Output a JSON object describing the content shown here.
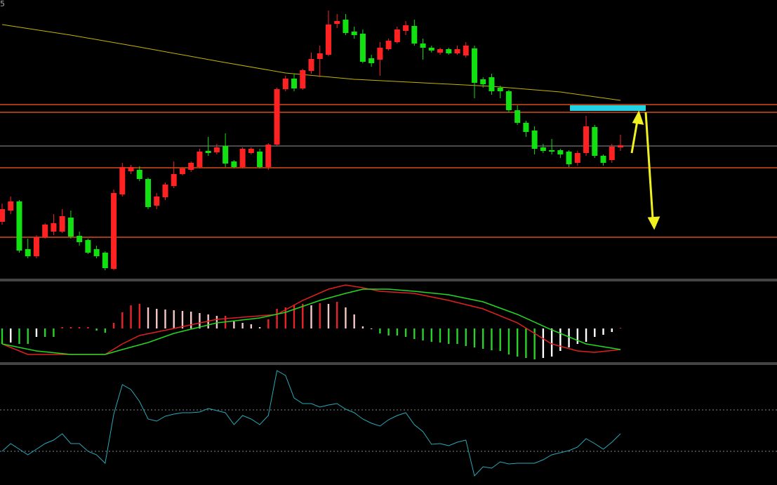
{
  "corner_label": "5",
  "chart_data": [
    {
      "type": "candlestick",
      "ylim": [
        0,
        400
      ],
      "up_color": "#ff2222",
      "down_color": "#11e011",
      "open": [
        84,
        100,
        113,
        45,
        35,
        62,
        70,
        70,
        90,
        64,
        58,
        45,
        40,
        17,
        123,
        156,
        158,
        145,
        107,
        119,
        135,
        152,
        158,
        162,
        185,
        183,
        192,
        170,
        162,
        182,
        184,
        162,
        194,
        273,
        288,
        274,
        299,
        316,
        322,
        366,
        372,
        355,
        352,
        317,
        315,
        330,
        340,
        356,
        363,
        338,
        332,
        325,
        330,
        324,
        321,
        331,
        287,
        290,
        275,
        270,
        243,
        225,
        214,
        190,
        186,
        186,
        184,
        168,
        182,
        219,
        178,
        172,
        190
      ],
      "high": [
        110,
        120,
        115,
        60,
        65,
        82,
        95,
        102,
        100,
        70,
        60,
        50,
        42,
        130,
        168,
        165,
        163,
        147,
        125,
        140,
        170,
        162,
        170,
        188,
        205,
        195,
        210,
        172,
        190,
        190,
        188,
        196,
        275,
        292,
        295,
        302,
        325,
        335,
        385,
        380,
        380,
        362,
        358,
        322,
        340,
        345,
        362,
        370,
        372,
        345,
        335,
        332,
        332,
        335,
        340,
        335,
        290,
        295,
        278,
        272,
        250,
        228,
        220,
        195,
        202,
        188,
        186,
        185,
        235,
        222,
        180,
        195,
        208
      ],
      "low": [
        80,
        95,
        40,
        32,
        32,
        60,
        65,
        68,
        60,
        50,
        38,
        32,
        15,
        15,
        120,
        152,
        142,
        102,
        102,
        115,
        132,
        150,
        155,
        160,
        178,
        180,
        162,
        160,
        160,
        180,
        160,
        158,
        192,
        270,
        270,
        272,
        295,
        290,
        320,
        360,
        350,
        345,
        310,
        305,
        292,
        328,
        338,
        350,
        335,
        315,
        325,
        322,
        322,
        322,
        318,
        260,
        275,
        265,
        260,
        240,
        222,
        205,
        180,
        182,
        180,
        175,
        162,
        164,
        178,
        175,
        164,
        168,
        185
      ],
      "close": [
        102,
        113,
        43,
        35,
        62,
        80,
        82,
        92,
        63,
        55,
        40,
        35,
        18,
        125,
        162,
        162,
        145,
        105,
        120,
        137,
        152,
        160,
        168,
        184,
        182,
        190,
        167,
        162,
        188,
        188,
        162,
        194,
        273,
        288,
        274,
        300,
        316,
        324,
        365,
        370,
        353,
        350,
        312,
        310,
        332,
        342,
        358,
        364,
        338,
        332,
        328,
        330,
        324,
        330,
        335,
        282,
        280,
        270,
        270,
        243,
        225,
        212,
        188,
        185,
        184,
        180,
        166,
        182,
        220,
        178,
        168,
        191,
        193
      ],
      "ma": {
        "color": "#c8b400",
        "x": [
          0,
          8,
          16,
          25,
          33,
          41,
          49,
          57,
          65,
          72
        ],
        "values": [
          365,
          350,
          333,
          313,
          296,
          287,
          282,
          277,
          269,
          257
        ]
      },
      "levels": [
        {
          "value": 251,
          "color": "#ff5a1e"
        },
        {
          "value": 240,
          "color": "#ff5a1e"
        },
        {
          "value": 192,
          "color": "#777777"
        },
        {
          "value": 161,
          "color": "#ff5a1e"
        },
        {
          "value": 62,
          "color": "#ff5a1e"
        }
      ]
    },
    {
      "type": "macd",
      "ylim": [
        -49,
        68
      ],
      "colors": {
        "rise_pos": "#e8232a",
        "fall_pos": "#f6c8c8",
        "fall_neg": "#2bd12b",
        "rise_neg": "#ffffff"
      },
      "values": [
        -22,
        -20,
        -22,
        -22,
        -12,
        -12,
        -12,
        2,
        2,
        2,
        2,
        -3,
        -6,
        8,
        23,
        33,
        35,
        30,
        28,
        27,
        26,
        25,
        24,
        22,
        20,
        18,
        18,
        10,
        8,
        6,
        2,
        13,
        28,
        30,
        33,
        35,
        33,
        36,
        35,
        38,
        30,
        20,
        3,
        0,
        -7,
        -10,
        -10,
        -12,
        -15,
        -17,
        -19,
        -20,
        -22,
        -22,
        -25,
        -27,
        -29,
        -31,
        -32,
        -37,
        -40,
        -42,
        -44,
        -42,
        -40,
        -32,
        -27,
        -22,
        -19,
        -12,
        -9,
        -5,
        1
      ],
      "lines": [
        {
          "color": "#e02020",
          "x": [
            0,
            3,
            6,
            12,
            14,
            16,
            20,
            25,
            30,
            32,
            35,
            38,
            40,
            42,
            44,
            48,
            52,
            56,
            60,
            64,
            67,
            69,
            72
          ],
          "values": [
            -22,
            -37,
            -37,
            -37,
            -22,
            -10,
            0,
            13,
            18,
            20,
            40,
            56,
            62,
            58,
            53,
            50,
            40,
            28,
            8,
            -22,
            -32,
            -34,
            -30
          ]
        },
        {
          "color": "#22d822",
          "x": [
            0,
            4,
            8,
            12,
            14,
            17,
            20,
            25,
            30,
            33,
            37,
            40,
            42,
            45,
            48,
            52,
            56,
            60,
            64,
            68,
            72
          ],
          "values": [
            -22,
            -32,
            -37,
            -37,
            -30,
            -20,
            -7,
            8,
            15,
            23,
            40,
            50,
            56,
            56,
            53,
            48,
            38,
            20,
            -2,
            -22,
            -30
          ]
        }
      ]
    },
    {
      "type": "line",
      "ylim": [
        0,
        172
      ],
      "color": "#2aa9b8",
      "levels": [
        107,
        48
      ],
      "values": [
        48,
        59,
        51,
        43,
        51,
        59,
        64,
        73,
        59,
        59,
        48,
        43,
        31,
        101,
        143,
        136,
        119,
        94,
        91,
        98,
        101,
        103,
        103,
        104,
        109,
        106,
        103,
        86,
        99,
        94,
        86,
        99,
        163,
        156,
        124,
        116,
        116,
        111,
        114,
        116,
        108,
        103,
        94,
        88,
        84,
        93,
        99,
        103,
        86,
        76,
        58,
        59,
        56,
        61,
        64,
        13,
        26,
        24,
        33,
        30,
        31,
        31,
        31,
        36,
        43,
        46,
        49,
        54,
        66,
        59,
        51,
        61,
        73
      ]
    }
  ]
}
